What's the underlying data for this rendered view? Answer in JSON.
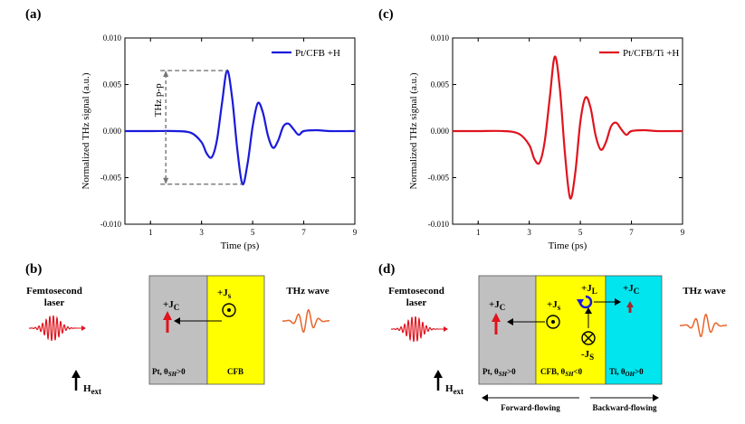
{
  "figure": {
    "panels": {
      "a": "(a)",
      "b": "(b)",
      "c": "(c)",
      "d": "(d)"
    }
  },
  "chart_data": [
    {
      "type": "line",
      "panel": "(a)",
      "xlabel": "Time (ps)",
      "ylabel": "Normalized THz signal (a.u.)",
      "xlim": [
        0,
        9
      ],
      "ylim": [
        -0.01,
        0.01
      ],
      "xticks": [
        1,
        3,
        5,
        7,
        9
      ],
      "yticks": [
        -0.01,
        -0.005,
        0.0,
        0.005,
        0.01
      ],
      "ytick_labels": [
        "-0.010",
        "-0.005",
        "0.000",
        "0.005",
        "0.010"
      ],
      "color": "#1a1adc",
      "series": [
        {
          "name": "Pt/CFB +H",
          "x": [
            0.0,
            1.0,
            2.0,
            2.6,
            3.0,
            3.2,
            3.4,
            3.6,
            3.8,
            4.0,
            4.2,
            4.4,
            4.6,
            4.8,
            5.0,
            5.2,
            5.4,
            5.6,
            5.8,
            6.0,
            6.2,
            6.4,
            6.6,
            6.8,
            7.0,
            7.5,
            8.0,
            9.0
          ],
          "y": [
            0.0,
            0.0,
            0.0,
            -0.0002,
            -0.0012,
            -0.0024,
            -0.0028,
            -0.001,
            0.003,
            0.0065,
            0.0035,
            -0.002,
            -0.0057,
            -0.0035,
            0.0005,
            0.003,
            0.002,
            -0.0005,
            -0.0018,
            -0.001,
            0.0005,
            0.0008,
            0.0002,
            -0.0004,
            0.0,
            0.0001,
            0.0,
            0.0
          ]
        }
      ],
      "annotation": "THz p-p",
      "pp_top": 0.0065,
      "pp_bottom": -0.0057,
      "pp_x": 1.6
    },
    {
      "type": "line",
      "panel": "(c)",
      "xlabel": "Time (ps)",
      "ylabel": "Normalized THz signal (a.u.)",
      "xlim": [
        0,
        9
      ],
      "ylim": [
        -0.01,
        0.01
      ],
      "xticks": [
        1,
        3,
        5,
        7,
        9
      ],
      "yticks": [
        -0.01,
        -0.005,
        0.0,
        0.005,
        0.01
      ],
      "ytick_labels": [
        "-0.010",
        "-0.005",
        "0.000",
        "0.005",
        "0.010"
      ],
      "color": "#e0141e",
      "series": [
        {
          "name": "Pt/CFB/Ti +H",
          "x": [
            0.0,
            1.0,
            2.0,
            2.6,
            3.0,
            3.2,
            3.4,
            3.6,
            3.8,
            4.0,
            4.2,
            4.4,
            4.6,
            4.8,
            5.0,
            5.2,
            5.4,
            5.6,
            5.8,
            6.0,
            6.2,
            6.4,
            6.6,
            6.8,
            7.0,
            7.5,
            8.0,
            9.0
          ],
          "y": [
            0.0,
            0.0,
            0.0,
            -0.0003,
            -0.0015,
            -0.003,
            -0.0034,
            -0.0012,
            0.0035,
            0.008,
            0.0045,
            -0.0025,
            -0.0072,
            -0.0045,
            0.001,
            0.0036,
            0.0025,
            -0.0005,
            -0.002,
            -0.0012,
            0.0005,
            0.0009,
            0.0002,
            -0.0004,
            0.0,
            0.0001,
            0.0,
            0.0
          ]
        }
      ]
    }
  ],
  "diagram_b": {
    "laser_label_1": "Femtosecond",
    "laser_label_2": "laser",
    "field_label": "H",
    "field_sub": "ext",
    "thz_label": "THz wave",
    "layer1_label": "Pt, θ",
    "layer1_sub": "SH",
    "layer1_suffix": ">0",
    "layer2_label": "CFB",
    "jc_label": "+J",
    "jc_sub": "C",
    "js_label": "+J",
    "js_sub": "s",
    "gray": "#c0c0c0",
    "yellow": "#ffff00"
  },
  "diagram_d": {
    "laser_label_1": "Femtosecond",
    "laser_label_2": "laser",
    "field_label": "H",
    "field_sub": "ext",
    "thz_label": "THz wave",
    "layer1_label": "Pt, θ",
    "layer1_sub": "SH",
    "layer1_suffix": ">0",
    "layer2_label": "CFB, θ",
    "layer2_sub": "SH",
    "layer2_suffix": "<0",
    "layer3_label": "Ti, θ",
    "layer3_sub": "OH",
    "layer3_suffix": ">0",
    "jc_label": "+J",
    "jc_sub": "C",
    "js_label": "+J",
    "js_sub": "s",
    "mjs_label": "-J",
    "mjs_sub": "S",
    "jl_label": "+J",
    "jl_sub": "L",
    "jc2_label": "+J",
    "jc2_sub": "C",
    "forward_label": "Forward-flowing",
    "backward_label": "Backward-flowing",
    "gray": "#c0c0c0",
    "yellow": "#ffff00",
    "cyan": "#00e5ee"
  }
}
